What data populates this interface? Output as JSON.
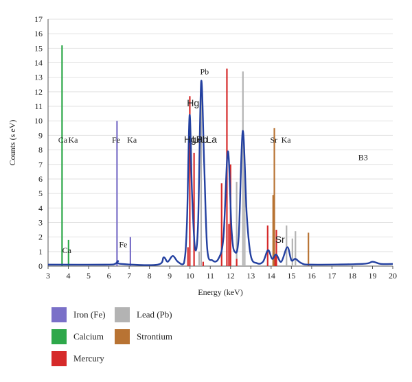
{
  "chart_data": {
    "type": "line",
    "xlabel": "Energy (keV)",
    "ylabel": "Counts (s eV)",
    "xlim": [
      3,
      20
    ],
    "ylim": [
      0,
      17
    ],
    "x_ticks": [
      3,
      4,
      5,
      6,
      7,
      8,
      9,
      10,
      11,
      12,
      13,
      14,
      15,
      16,
      17,
      18,
      19,
      20
    ],
    "y_ticks": [
      0,
      1,
      2,
      3,
      4,
      5,
      6,
      7,
      8,
      9,
      10,
      11,
      12,
      13,
      14,
      15,
      16,
      17
    ],
    "grid": "horizontal",
    "spectrum": {
      "name": "B3",
      "color": "#2340a0",
      "points": [
        [
          3.0,
          0.1
        ],
        [
          5.8,
          0.1
        ],
        [
          6.3,
          0.15
        ],
        [
          6.45,
          0.35
        ],
        [
          6.6,
          0.15
        ],
        [
          8.4,
          0.1
        ],
        [
          8.7,
          0.6
        ],
        [
          8.9,
          0.3
        ],
        [
          9.15,
          0.7
        ],
        [
          9.4,
          0.3
        ],
        [
          9.7,
          0.2
        ],
        [
          9.85,
          3.0
        ],
        [
          9.98,
          10.4
        ],
        [
          10.1,
          5.0
        ],
        [
          10.25,
          1.2
        ],
        [
          10.4,
          3.0
        ],
        [
          10.55,
          12.7
        ],
        [
          10.7,
          7.0
        ],
        [
          10.85,
          1.2
        ],
        [
          11.1,
          0.4
        ],
        [
          11.4,
          0.5
        ],
        [
          11.65,
          2.0
        ],
        [
          11.87,
          7.9
        ],
        [
          12.05,
          2.5
        ],
        [
          12.2,
          1.0
        ],
        [
          12.4,
          2.0
        ],
        [
          12.6,
          9.3
        ],
        [
          12.8,
          3.5
        ],
        [
          13.0,
          0.7
        ],
        [
          13.3,
          0.2
        ],
        [
          13.6,
          0.3
        ],
        [
          13.85,
          1.1
        ],
        [
          14.05,
          0.5
        ],
        [
          14.25,
          0.8
        ],
        [
          14.5,
          0.3
        ],
        [
          14.8,
          1.3
        ],
        [
          15.0,
          0.4
        ],
        [
          15.2,
          0.5
        ],
        [
          15.5,
          0.2
        ],
        [
          16.0,
          0.1
        ],
        [
          18.5,
          0.15
        ],
        [
          19.0,
          0.3
        ],
        [
          19.4,
          0.15
        ],
        [
          20.0,
          0.15
        ]
      ]
    },
    "series": [
      {
        "name": "Iron (Fe)",
        "color": "#7a70c8",
        "lines": [
          [
            6.4,
            10.0
          ],
          [
            7.06,
            2.0
          ]
        ]
      },
      {
        "name": "Lead (Pb)",
        "color": "#b3b3b3",
        "lines": [
          [
            10.45,
            1.0
          ],
          [
            10.55,
            12.0
          ],
          [
            12.61,
            13.4
          ],
          [
            12.7,
            6.8
          ],
          [
            12.3,
            5.8
          ],
          [
            14.76,
            2.8
          ],
          [
            15.2,
            2.4
          ],
          [
            15.05,
            1.9
          ]
        ]
      },
      {
        "name": "Calcium",
        "color": "#2ea84a",
        "lines": [
          [
            3.69,
            15.2
          ],
          [
            4.01,
            1.8
          ]
        ]
      },
      {
        "name": "Strontium",
        "color": "#b87333",
        "lines": [
          [
            14.16,
            9.5
          ],
          [
            14.1,
            4.9
          ],
          [
            15.84,
            2.3
          ]
        ]
      },
      {
        "name": "Mercury",
        "color": "#d62a2a",
        "lines": [
          [
            9.99,
            11.7
          ],
          [
            9.9,
            1.3
          ],
          [
            10.2,
            7.8
          ],
          [
            10.65,
            0.3
          ],
          [
            11.56,
            5.7
          ],
          [
            11.82,
            13.6
          ],
          [
            11.92,
            2.9
          ],
          [
            12.0,
            7.0
          ],
          [
            12.3,
            0.5
          ],
          [
            13.83,
            2.8
          ],
          [
            14.26,
            2.5
          ],
          [
            14.2,
            0.8
          ]
        ]
      }
    ],
    "annotations": [
      {
        "text": "Ca",
        "x": 3.5,
        "y": 8.5,
        "size": "normal"
      },
      {
        "text": "Ka",
        "x": 4.0,
        "y": 8.5,
        "size": "normal"
      },
      {
        "text": "Fe",
        "x": 6.15,
        "y": 8.5,
        "size": "normal"
      },
      {
        "text": "Ka",
        "x": 6.9,
        "y": 8.5,
        "size": "normal"
      },
      {
        "text": "Hg",
        "x": 9.85,
        "y": 11.0,
        "size": "big"
      },
      {
        "text": "Pb",
        "x": 10.5,
        "y": 13.2,
        "size": "normal"
      },
      {
        "text": "Hg",
        "x": 9.7,
        "y": 8.5,
        "size": "big"
      },
      {
        "text": "La",
        "x": 10.1,
        "y": 8.5,
        "size": "big"
      },
      {
        "text": "Pb",
        "x": 10.3,
        "y": 8.5,
        "size": "big"
      },
      {
        "text": "La",
        "x": 10.8,
        "y": 8.5,
        "size": "big"
      },
      {
        "text": "Sr",
        "x": 13.95,
        "y": 8.5,
        "size": "normal"
      },
      {
        "text": "Ka",
        "x": 14.5,
        "y": 8.5,
        "size": "normal"
      },
      {
        "text": "B3",
        "x": 18.3,
        "y": 7.3,
        "size": "normal"
      },
      {
        "text": "Ca",
        "x": 3.7,
        "y": 0.9,
        "size": "normal"
      },
      {
        "text": "Fe",
        "x": 6.5,
        "y": 1.3,
        "size": "normal"
      },
      {
        "text": "Sr",
        "x": 14.2,
        "y": 1.6,
        "size": "big"
      }
    ],
    "legend": [
      {
        "label": "Iron (Fe)",
        "color": "#7a70c8"
      },
      {
        "label": "Lead (Pb)",
        "color": "#b3b3b3"
      },
      {
        "label": "Calcium",
        "color": "#2ea84a"
      },
      {
        "label": "Strontium",
        "color": "#b87333"
      },
      {
        "label": "Mercury",
        "color": "#d62a2a"
      }
    ]
  }
}
